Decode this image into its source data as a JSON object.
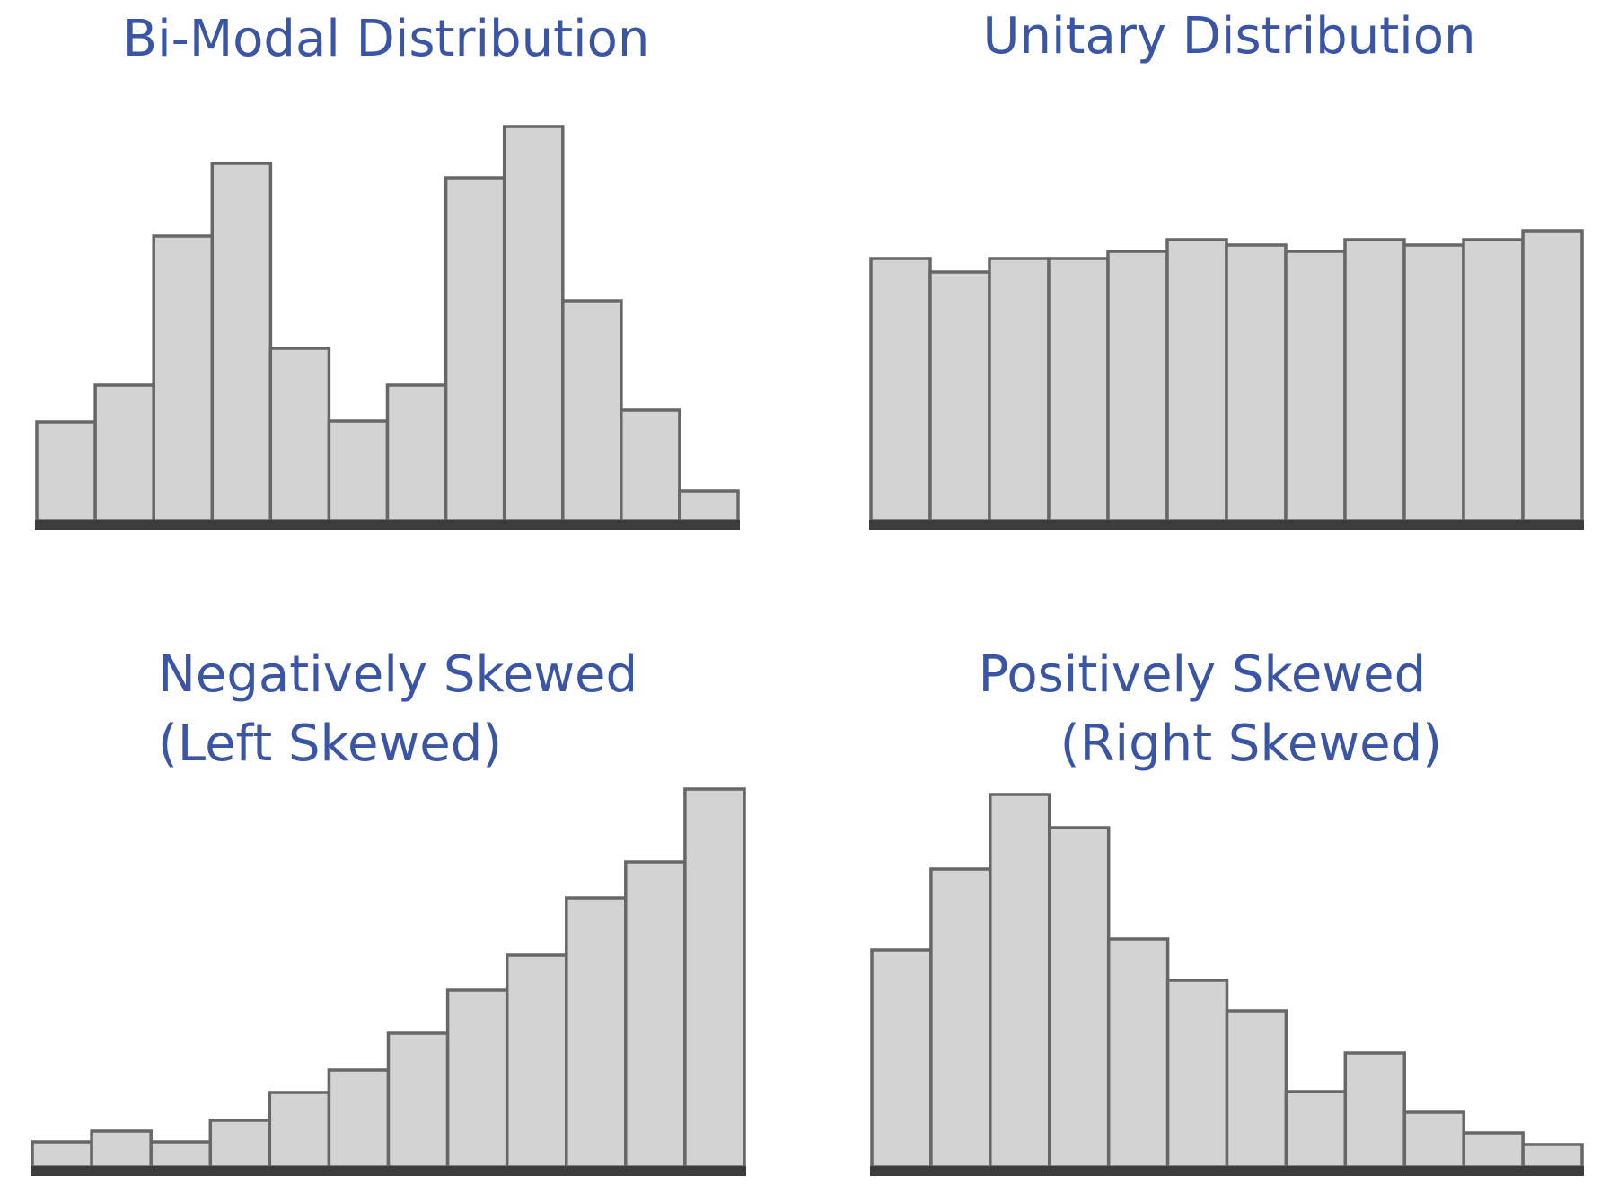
{
  "colors": {
    "title": "#3a55a6",
    "bar_fill": "#d3d3d3",
    "bar_stroke": "#676767",
    "baseline": "#3c3c3c",
    "background": "#ffffff"
  },
  "chart_data": [
    {
      "type": "bar",
      "title": "Bi-Modal Distribution",
      "title_lines": [
        "Bi-Modal Distribution"
      ],
      "xlabel": "",
      "ylabel": "",
      "grid": false,
      "values": [
        110,
        151,
        317,
        398,
        192,
        111,
        151,
        382,
        439,
        245,
        123,
        33
      ],
      "ylim": [
        0,
        440
      ]
    },
    {
      "type": "bar",
      "title": "Unitary Distribution",
      "title_lines": [
        "Unitary Distribution"
      ],
      "xlabel": "",
      "ylabel": "",
      "grid": false,
      "values": [
        292,
        277,
        292,
        292,
        300,
        313,
        307,
        300,
        313,
        307,
        313,
        323
      ],
      "ylim": [
        0,
        440
      ]
    },
    {
      "type": "bar",
      "title": "Negatively Skewed (Left Skewed)",
      "title_lines": [
        "Negatively Skewed",
        "(Left Skewed)"
      ],
      "xlabel": "",
      "ylabel": "",
      "grid": false,
      "values": [
        28,
        40,
        28,
        52,
        83,
        108,
        149,
        197,
        236,
        300,
        340,
        421
      ],
      "ylim": [
        0,
        440
      ]
    },
    {
      "type": "bar",
      "title": "Positively Skewed (Right Skewed)",
      "title_lines": [
        "Positively Skewed",
        "(Right Skewed)"
      ],
      "xlabel": "",
      "ylabel": "",
      "grid": false,
      "values": [
        242,
        332,
        415,
        378,
        254,
        208,
        174,
        84,
        127,
        61,
        38,
        25
      ],
      "ylim": [
        0,
        440
      ]
    }
  ]
}
